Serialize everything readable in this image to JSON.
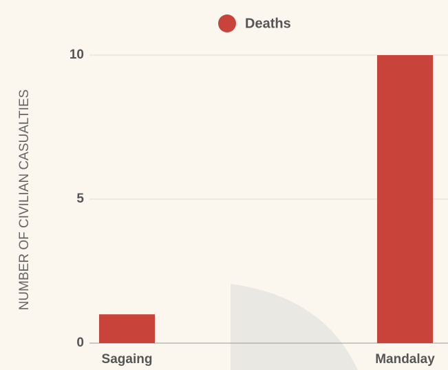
{
  "chart_data": {
    "type": "bar",
    "categories": [
      "Sagaing",
      "Mandalay"
    ],
    "series": [
      {
        "name": "Deaths",
        "color": "#c8433a",
        "values": [
          1,
          10
        ]
      }
    ],
    "y_label": "NUMBER OF CIVILIAN CASUALTIES",
    "ylim": [
      0,
      10
    ],
    "yticks": [
      0,
      5,
      10
    ],
    "grid": true,
    "legend": "top"
  }
}
